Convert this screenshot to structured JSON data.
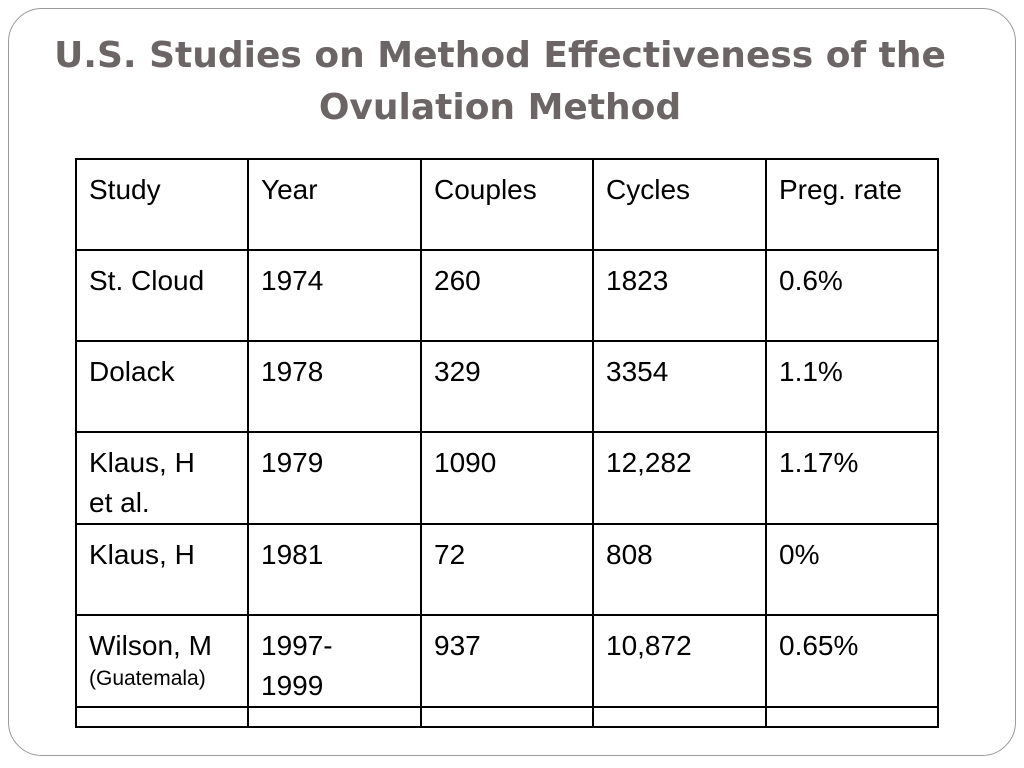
{
  "title": {
    "line1": "U.S. Studies on Method Effectiveness of the",
    "line2": "Ovulation Method"
  },
  "table": {
    "headers": [
      "Study",
      "Year",
      "Couples",
      "Cycles",
      "Preg. rate"
    ],
    "rows": [
      {
        "study": "St. Cloud",
        "year": "1974",
        "couples": "260",
        "cycles": "1823",
        "rate": "0.6%"
      },
      {
        "study": "Dolack",
        "year": "1978",
        "couples": "329",
        "cycles": "3354",
        "rate": "1.1%"
      },
      {
        "study_line1": "Klaus, H",
        "study_line2": "et al.",
        "year": "1979",
        "couples": "1090",
        "cycles": "12,282",
        "rate": "1.17%"
      },
      {
        "study": "Klaus, H",
        "year": "1981",
        "couples": "72",
        "cycles": "808",
        "rate": "0%"
      },
      {
        "study": "Wilson, M",
        "study_note": "(Guatemala)",
        "year_line1": "1997-",
        "year_line2": "1999",
        "couples": "937",
        "cycles": "10,872",
        "rate": "0.65%"
      }
    ]
  }
}
